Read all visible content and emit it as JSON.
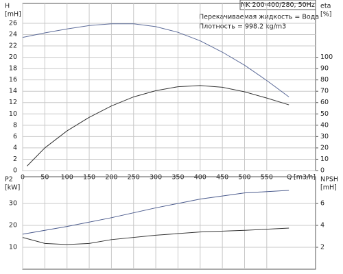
{
  "chart_data": [
    {
      "type": "line",
      "legend_title": "NK 200-400/280, 50Hz",
      "annotations": [
        "Перекачиваемая жидкость = Вода",
        "Плотность = 998.2 kg/m3"
      ],
      "ylabel": [
        "H",
        "[mH]"
      ],
      "y2label": [
        "eta",
        "[%]"
      ],
      "xlabel": [
        "Q",
        "[m3/h]"
      ],
      "xlim": [
        0,
        660
      ],
      "xticks": [
        0,
        50,
        100,
        150,
        200,
        250,
        300,
        350,
        400,
        450,
        500,
        550
      ],
      "ylim": [
        0,
        29.5
      ],
      "yticks": [
        0,
        2,
        4,
        6,
        8,
        10,
        12,
        14,
        16,
        18,
        20,
        22,
        24,
        26
      ],
      "y2lim": [
        0,
        147.5
      ],
      "y2ticks": [
        0,
        10,
        20,
        30,
        40,
        50,
        60,
        70,
        80,
        90,
        100
      ],
      "grid": true,
      "series": [
        {
          "name": "H",
          "color": "#5b6a98",
          "x": [
            0,
            50,
            100,
            150,
            200,
            250,
            300,
            350,
            400,
            450,
            500,
            550,
            600
          ],
          "values": [
            23.5,
            24.3,
            25.0,
            25.6,
            25.9,
            25.9,
            25.4,
            24.4,
            22.9,
            20.9,
            18.6,
            15.9,
            13.0
          ]
        },
        {
          "name": "eta",
          "color": "#333333",
          "axis": "y2",
          "x": [
            10,
            50,
            100,
            150,
            200,
            250,
            300,
            350,
            400,
            450,
            500,
            550,
            600
          ],
          "values": [
            4,
            20,
            35,
            47,
            57,
            65,
            70.5,
            74,
            75,
            73.5,
            69.5,
            64,
            58
          ]
        }
      ]
    },
    {
      "type": "line",
      "ylabel": [
        "P2",
        "[kW]"
      ],
      "y2label": [
        "NPSH",
        "[mH]"
      ],
      "xlim": [
        0,
        660
      ],
      "ylim": [
        0,
        42.2
      ],
      "yticks": [
        10,
        20,
        30
      ],
      "y2lim": [
        0,
        8.44
      ],
      "y2ticks": [
        2,
        4,
        6
      ],
      "grid": true,
      "series": [
        {
          "name": "P2",
          "color": "#4a5a8c",
          "x": [
            0,
            100,
            200,
            300,
            400,
            500,
            600
          ],
          "values": [
            16,
            19.5,
            23.5,
            28,
            32,
            34.8,
            36
          ]
        },
        {
          "name": "NPSH",
          "color": "#333333",
          "axis": "y2",
          "x": [
            0,
            50,
            100,
            150,
            200,
            300,
            400,
            500,
            600
          ],
          "values": [
            2.9,
            2.35,
            2.25,
            2.35,
            2.7,
            3.1,
            3.4,
            3.55,
            3.75
          ]
        }
      ]
    }
  ]
}
